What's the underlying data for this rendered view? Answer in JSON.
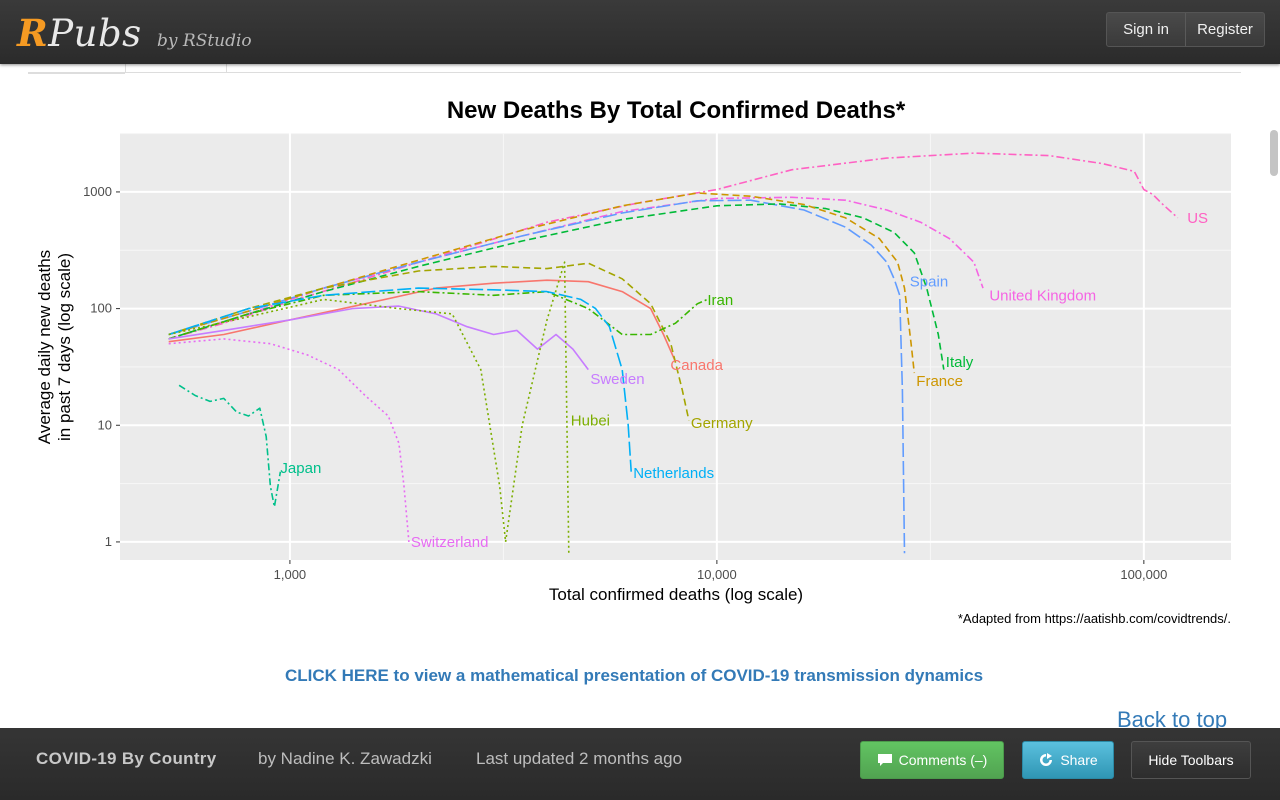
{
  "header": {
    "logo_r": "R",
    "logo_rest": "Pubs",
    "byline": "by RStudio",
    "sign_in": "Sign in",
    "register": "Register"
  },
  "chart_data": {
    "type": "line",
    "title": "New Deaths By Total Confirmed Deaths*",
    "xlabel": "Total confirmed deaths (log scale)",
    "ylabel": "Average daily new deaths in past 7 days (log scale)",
    "ylabel_lines": [
      "Average daily new deaths",
      "in past 7 days (log scale)"
    ],
    "x_scale": "log",
    "y_scale": "log",
    "xlim": [
      400,
      160000
    ],
    "ylim": [
      0.7,
      3200
    ],
    "x_ticks": [
      1000,
      10000,
      100000
    ],
    "x_tick_labels": [
      "1,000",
      "10,000",
      "100,000"
    ],
    "y_ticks": [
      1,
      10,
      100,
      1000
    ],
    "y_tick_labels": [
      "1",
      "10",
      "100",
      "1000"
    ],
    "grid": true,
    "legend": "none (direct labels)",
    "caption": "*Adapted from https://aatishb.com/covidtrends/.",
    "series": [
      {
        "name": "US",
        "color": "#ff61c3",
        "dash": "8,3,2,3",
        "x": [
          520,
          700,
          1000,
          1500,
          2500,
          4000,
          6500,
          10000,
          15000,
          25000,
          40000,
          60000,
          80000,
          95000,
          100000,
          105000,
          110000,
          120000
        ],
        "y": [
          55,
          75,
          115,
          180,
          320,
          550,
          800,
          1050,
          1550,
          1950,
          2150,
          2050,
          1750,
          1500,
          1050,
          950,
          800,
          600
        ]
      },
      {
        "name": "United Kingdom",
        "color": "#f564e3",
        "dash": "8,3,2,3",
        "x": [
          520,
          800,
          1200,
          2000,
          3500,
          6000,
          10000,
          15000,
          20000,
          25000,
          30000,
          35000,
          38000,
          40000,
          42000
        ],
        "y": [
          55,
          90,
          150,
          250,
          420,
          680,
          880,
          900,
          850,
          700,
          550,
          400,
          300,
          250,
          150
        ]
      },
      {
        "name": "Spain",
        "color": "#619cff",
        "dash": "14,4",
        "x": [
          520,
          800,
          1200,
          2000,
          3500,
          6000,
          9000,
          12000,
          16000,
          20000,
          23000,
          25000,
          26000,
          26800,
          27200,
          27500
        ],
        "y": [
          60,
          95,
          150,
          250,
          420,
          660,
          840,
          850,
          700,
          500,
          350,
          250,
          180,
          130,
          20,
          0.8
        ]
      },
      {
        "name": "Italy",
        "color": "#00ba38",
        "dash": "7,4",
        "x": [
          520,
          800,
          1200,
          2000,
          3500,
          6000,
          10000,
          14000,
          18000,
          22000,
          26000,
          29000,
          31000,
          33000,
          34000
        ],
        "y": [
          55,
          90,
          140,
          230,
          380,
          580,
          760,
          790,
          720,
          600,
          450,
          300,
          150,
          60,
          30
        ]
      },
      {
        "name": "France",
        "color": "#cd9600",
        "dash": "7,4",
        "x": [
          520,
          800,
          1200,
          2000,
          3500,
          6000,
          9000,
          12000,
          16000,
          20000,
          24000,
          26500,
          27500,
          28500,
          29000
        ],
        "y": [
          60,
          95,
          150,
          260,
          470,
          760,
          980,
          920,
          780,
          600,
          400,
          250,
          150,
          50,
          28
        ]
      },
      {
        "name": "Canada",
        "color": "#f8766d",
        "dash": "",
        "x": [
          520,
          700,
          1000,
          1500,
          2200,
          3000,
          4000,
          5000,
          6000,
          7000,
          7500,
          8000
        ],
        "y": [
          52,
          60,
          80,
          110,
          150,
          165,
          175,
          170,
          140,
          100,
          60,
          35
        ]
      },
      {
        "name": "Germany",
        "color": "#a3a500",
        "dash": "7,4",
        "x": [
          520,
          800,
          1200,
          2000,
          3000,
          4000,
          5000,
          6000,
          7000,
          7800,
          8300,
          8600
        ],
        "y": [
          60,
          100,
          150,
          210,
          230,
          220,
          245,
          180,
          110,
          50,
          20,
          11
        ]
      },
      {
        "name": "Iran",
        "color": "#39b600",
        "dash": "7,3,2,3",
        "x": [
          520,
          800,
          1200,
          2000,
          3000,
          4000,
          5000,
          6000,
          7000,
          8000,
          9000,
          9500
        ],
        "y": [
          55,
          90,
          130,
          140,
          130,
          140,
          100,
          60,
          60,
          75,
          110,
          120
        ]
      },
      {
        "name": "Netherlands",
        "color": "#00b0f6",
        "dash": "14,4",
        "x": [
          520,
          800,
          1200,
          2000,
          3000,
          4000,
          4800,
          5200,
          5600,
          6000,
          6200,
          6300
        ],
        "y": [
          60,
          100,
          130,
          150,
          145,
          140,
          120,
          100,
          70,
          30,
          10,
          4
        ]
      },
      {
        "name": "Sweden",
        "color": "#c77cff",
        "dash": "",
        "x": [
          520,
          700,
          1000,
          1400,
          1800,
          2200,
          2600,
          3000,
          3400,
          3800,
          4200,
          4600,
          5000
        ],
        "y": [
          55,
          65,
          80,
          100,
          105,
          90,
          70,
          60,
          65,
          45,
          60,
          45,
          30
        ]
      },
      {
        "name": "Hubei",
        "color": "#7cae00",
        "dash": "2,3",
        "x": [
          520,
          800,
          1200,
          1800,
          2400,
          2800,
          3100,
          3200,
          3500,
          4000,
          4400,
          4500
        ],
        "y": [
          60,
          85,
          120,
          100,
          90,
          30,
          3,
          1,
          10,
          80,
          250,
          0.8
        ]
      },
      {
        "name": "Switzerland",
        "color": "#e76bf3",
        "dash": "2,3",
        "x": [
          520,
          700,
          900,
          1100,
          1300,
          1500,
          1700,
          1800,
          1850,
          1900
        ],
        "y": [
          50,
          55,
          50,
          40,
          30,
          18,
          12,
          7,
          3,
          1
        ]
      },
      {
        "name": "Japan",
        "color": "#00c08b",
        "dash": "7,3,2,3",
        "x": [
          550,
          600,
          650,
          700,
          750,
          800,
          850,
          880,
          900,
          920,
          950
        ],
        "y": [
          22,
          18,
          16,
          17,
          13,
          12,
          14,
          8,
          3,
          2,
          4
        ]
      }
    ],
    "labels": [
      {
        "text": "US",
        "x": 125000,
        "y": 600
      },
      {
        "text": "United Kingdom",
        "x": 43000,
        "y": 130
      },
      {
        "text": "Spain",
        "x": 28000,
        "y": 170
      },
      {
        "text": "Italy",
        "x": 34000,
        "y": 35
      },
      {
        "text": "France",
        "x": 29000,
        "y": 24
      },
      {
        "text": "Canada",
        "x": 7700,
        "y": 33
      },
      {
        "text": "Germany",
        "x": 8600,
        "y": 10.5
      },
      {
        "text": "Iran",
        "x": 9400,
        "y": 118
      },
      {
        "text": "Netherlands",
        "x": 6300,
        "y": 3.9
      },
      {
        "text": "Sweden",
        "x": 5000,
        "y": 25
      },
      {
        "text": "Hubei",
        "x": 4500,
        "y": 11
      },
      {
        "text": "Switzerland",
        "x": 1900,
        "y": 1
      },
      {
        "text": "Japan",
        "x": 940,
        "y": 4.3
      }
    ]
  },
  "link": {
    "text": "CLICK HERE to view a mathematical presentation of COVID-19 transmission dynamics"
  },
  "back_to_top": "Back to top",
  "footer": {
    "title": "COVID-19 By Country",
    "author": "by Nadine K. Zawadzki",
    "updated": "Last updated 2 months ago",
    "comments": "Comments (–)",
    "share": "Share",
    "hide": "Hide Toolbars",
    "colors": {
      "comments": "#5cb85c",
      "share": "#4ab3d8"
    }
  }
}
